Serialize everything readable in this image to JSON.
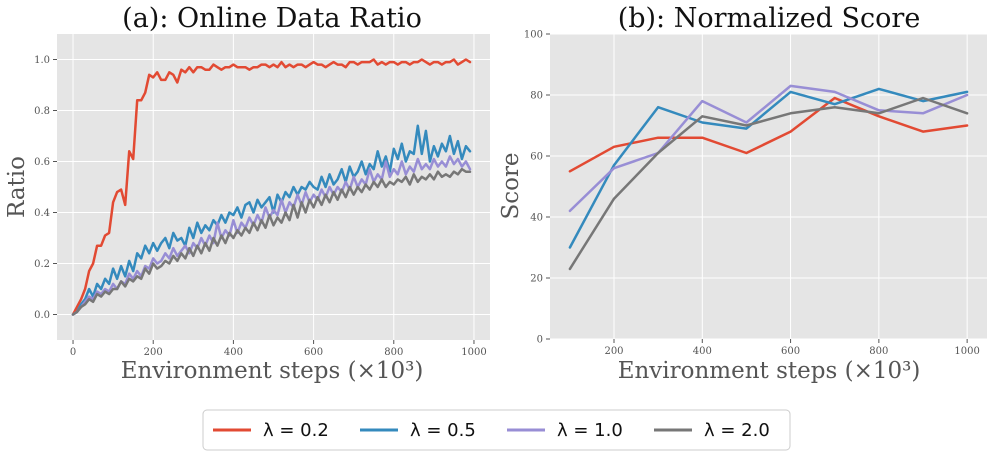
{
  "chart_data": [
    {
      "type": "line",
      "title": "(a): Online Data Ratio",
      "xlabel": "Environment steps (×10³)",
      "ylabel": "Ratio",
      "xlim": [
        -40,
        1040
      ],
      "ylim": [
        -0.1,
        1.1
      ],
      "xticks": [
        0,
        200,
        400,
        600,
        800,
        1000
      ],
      "yticks": [
        0.0,
        0.2,
        0.4,
        0.6,
        0.8,
        1.0
      ],
      "series": [
        {
          "name": "λ = 0.2",
          "color": "#E24A33",
          "x": [
            0,
            10,
            20,
            30,
            40,
            50,
            60,
            70,
            80,
            90,
            100,
            110,
            120,
            130,
            140,
            150,
            160,
            170,
            180,
            190,
            200,
            210,
            220,
            230,
            240,
            250,
            260,
            270,
            280,
            290,
            300,
            310,
            320,
            330,
            340,
            350,
            360,
            370,
            380,
            390,
            400,
            410,
            420,
            430,
            440,
            450,
            460,
            470,
            480,
            490,
            500,
            510,
            520,
            530,
            540,
            550,
            560,
            570,
            580,
            590,
            600,
            610,
            620,
            630,
            640,
            650,
            660,
            670,
            680,
            690,
            700,
            710,
            720,
            730,
            740,
            750,
            760,
            770,
            780,
            790,
            800,
            810,
            820,
            830,
            840,
            850,
            860,
            870,
            880,
            890,
            900,
            910,
            920,
            930,
            940,
            950,
            960,
            970,
            980,
            990
          ],
          "y": [
            0,
            0.03,
            0.06,
            0.1,
            0.17,
            0.2,
            0.27,
            0.27,
            0.31,
            0.32,
            0.44,
            0.48,
            0.49,
            0.43,
            0.64,
            0.61,
            0.84,
            0.84,
            0.87,
            0.94,
            0.93,
            0.95,
            0.92,
            0.92,
            0.95,
            0.94,
            0.91,
            0.96,
            0.95,
            0.97,
            0.95,
            0.97,
            0.97,
            0.96,
            0.96,
            0.98,
            0.97,
            0.96,
            0.97,
            0.97,
            0.98,
            0.97,
            0.97,
            0.97,
            0.96,
            0.97,
            0.97,
            0.98,
            0.98,
            0.97,
            0.98,
            0.97,
            0.99,
            0.97,
            0.98,
            0.97,
            0.98,
            0.98,
            0.97,
            0.98,
            0.99,
            0.98,
            0.98,
            0.97,
            0.98,
            0.99,
            0.98,
            0.98,
            0.97,
            0.99,
            0.99,
            0.98,
            0.99,
            0.99,
            0.99,
            1.0,
            0.98,
            0.99,
            0.98,
            0.99,
            0.99,
            0.98,
            0.99,
            0.99,
            0.98,
            0.99,
            0.99,
            1.0,
            0.99,
            0.98,
            0.99,
            0.99,
            0.98,
            0.99,
            0.99,
            1.0,
            0.98,
            0.99,
            1.0,
            0.99
          ]
        },
        {
          "name": "λ = 0.5",
          "color": "#348ABD",
          "x": [
            0,
            10,
            20,
            30,
            40,
            50,
            60,
            70,
            80,
            90,
            100,
            110,
            120,
            130,
            140,
            150,
            160,
            170,
            180,
            190,
            200,
            210,
            220,
            230,
            240,
            250,
            260,
            270,
            280,
            290,
            300,
            310,
            320,
            330,
            340,
            350,
            360,
            370,
            380,
            390,
            400,
            410,
            420,
            430,
            440,
            450,
            460,
            470,
            480,
            490,
            500,
            510,
            520,
            530,
            540,
            550,
            560,
            570,
            580,
            590,
            600,
            610,
            620,
            630,
            640,
            650,
            660,
            670,
            680,
            690,
            700,
            710,
            720,
            730,
            740,
            750,
            760,
            770,
            780,
            790,
            800,
            810,
            820,
            830,
            840,
            850,
            860,
            870,
            880,
            890,
            900,
            910,
            920,
            930,
            940,
            950,
            960,
            970,
            980,
            990
          ],
          "y": [
            0,
            0.01,
            0.04,
            0.06,
            0.1,
            0.07,
            0.12,
            0.1,
            0.14,
            0.12,
            0.18,
            0.14,
            0.19,
            0.15,
            0.21,
            0.17,
            0.24,
            0.22,
            0.27,
            0.24,
            0.28,
            0.25,
            0.28,
            0.3,
            0.26,
            0.32,
            0.29,
            0.3,
            0.27,
            0.34,
            0.3,
            0.36,
            0.32,
            0.35,
            0.33,
            0.37,
            0.35,
            0.39,
            0.36,
            0.4,
            0.39,
            0.42,
            0.38,
            0.43,
            0.44,
            0.4,
            0.45,
            0.42,
            0.44,
            0.46,
            0.4,
            0.47,
            0.44,
            0.48,
            0.46,
            0.5,
            0.47,
            0.5,
            0.49,
            0.52,
            0.5,
            0.49,
            0.54,
            0.5,
            0.55,
            0.51,
            0.53,
            0.57,
            0.52,
            0.58,
            0.54,
            0.56,
            0.6,
            0.55,
            0.59,
            0.57,
            0.64,
            0.58,
            0.62,
            0.56,
            0.65,
            0.61,
            0.67,
            0.6,
            0.64,
            0.63,
            0.74,
            0.63,
            0.72,
            0.6,
            0.66,
            0.62,
            0.67,
            0.64,
            0.7,
            0.63,
            0.68,
            0.61,
            0.66,
            0.64
          ]
        },
        {
          "name": "λ = 1.0",
          "color": "#988ED5",
          "x": [
            0,
            10,
            20,
            30,
            40,
            50,
            60,
            70,
            80,
            90,
            100,
            110,
            120,
            130,
            140,
            150,
            160,
            170,
            180,
            190,
            200,
            210,
            220,
            230,
            240,
            250,
            260,
            270,
            280,
            290,
            300,
            310,
            320,
            330,
            340,
            350,
            360,
            370,
            380,
            390,
            400,
            410,
            420,
            430,
            440,
            450,
            460,
            470,
            480,
            490,
            500,
            510,
            520,
            530,
            540,
            550,
            560,
            570,
            580,
            590,
            600,
            610,
            620,
            630,
            640,
            650,
            660,
            670,
            680,
            690,
            700,
            710,
            720,
            730,
            740,
            750,
            760,
            770,
            780,
            790,
            800,
            810,
            820,
            830,
            840,
            850,
            860,
            870,
            880,
            890,
            900,
            910,
            920,
            930,
            940,
            950,
            960,
            970,
            980,
            990
          ],
          "y": [
            0,
            0.01,
            0.03,
            0.05,
            0.07,
            0.06,
            0.09,
            0.08,
            0.1,
            0.09,
            0.12,
            0.1,
            0.13,
            0.12,
            0.16,
            0.14,
            0.17,
            0.15,
            0.19,
            0.18,
            0.22,
            0.2,
            0.21,
            0.24,
            0.22,
            0.26,
            0.23,
            0.25,
            0.27,
            0.24,
            0.28,
            0.26,
            0.3,
            0.27,
            0.31,
            0.28,
            0.36,
            0.3,
            0.33,
            0.31,
            0.37,
            0.32,
            0.36,
            0.34,
            0.38,
            0.35,
            0.39,
            0.36,
            0.42,
            0.38,
            0.41,
            0.39,
            0.45,
            0.4,
            0.44,
            0.42,
            0.47,
            0.43,
            0.48,
            0.44,
            0.47,
            0.45,
            0.49,
            0.46,
            0.5,
            0.47,
            0.5,
            0.48,
            0.52,
            0.49,
            0.54,
            0.5,
            0.53,
            0.51,
            0.57,
            0.52,
            0.55,
            0.53,
            0.6,
            0.54,
            0.57,
            0.55,
            0.6,
            0.55,
            0.58,
            0.56,
            0.61,
            0.57,
            0.59,
            0.57,
            0.61,
            0.58,
            0.6,
            0.58,
            0.62,
            0.59,
            0.61,
            0.58,
            0.6,
            0.57
          ]
        },
        {
          "name": "λ = 2.0",
          "color": "#777777",
          "x": [
            0,
            10,
            20,
            30,
            40,
            50,
            60,
            70,
            80,
            90,
            100,
            110,
            120,
            130,
            140,
            150,
            160,
            170,
            180,
            190,
            200,
            210,
            220,
            230,
            240,
            250,
            260,
            270,
            280,
            290,
            300,
            310,
            320,
            330,
            340,
            350,
            360,
            370,
            380,
            390,
            400,
            410,
            420,
            430,
            440,
            450,
            460,
            470,
            480,
            490,
            500,
            510,
            520,
            530,
            540,
            550,
            560,
            570,
            580,
            590,
            600,
            610,
            620,
            630,
            640,
            650,
            660,
            670,
            680,
            690,
            700,
            710,
            720,
            730,
            740,
            750,
            760,
            770,
            780,
            790,
            800,
            810,
            820,
            830,
            840,
            850,
            860,
            870,
            880,
            890,
            900,
            910,
            920,
            930,
            940,
            950,
            960,
            970,
            980,
            990
          ],
          "y": [
            0,
            0.01,
            0.03,
            0.04,
            0.06,
            0.05,
            0.08,
            0.07,
            0.09,
            0.08,
            0.1,
            0.1,
            0.13,
            0.11,
            0.14,
            0.13,
            0.15,
            0.14,
            0.18,
            0.16,
            0.2,
            0.18,
            0.19,
            0.21,
            0.2,
            0.23,
            0.21,
            0.24,
            0.22,
            0.26,
            0.23,
            0.27,
            0.24,
            0.28,
            0.25,
            0.3,
            0.27,
            0.31,
            0.28,
            0.32,
            0.3,
            0.33,
            0.31,
            0.34,
            0.32,
            0.36,
            0.33,
            0.37,
            0.34,
            0.39,
            0.35,
            0.38,
            0.36,
            0.4,
            0.37,
            0.43,
            0.38,
            0.44,
            0.4,
            0.45,
            0.42,
            0.46,
            0.43,
            0.47,
            0.44,
            0.48,
            0.45,
            0.49,
            0.46,
            0.5,
            0.47,
            0.5,
            0.48,
            0.51,
            0.49,
            0.52,
            0.5,
            0.53,
            0.5,
            0.52,
            0.51,
            0.53,
            0.52,
            0.54,
            0.51,
            0.55,
            0.52,
            0.54,
            0.53,
            0.55,
            0.53,
            0.56,
            0.54,
            0.55,
            0.54,
            0.56,
            0.55,
            0.57,
            0.56,
            0.56
          ]
        }
      ]
    },
    {
      "type": "line",
      "title": "(b): Normalized Score",
      "xlabel": "Environment steps (×10³)",
      "ylabel": "Score",
      "xlim": [
        55,
        1045
      ],
      "ylim": [
        0,
        100
      ],
      "xticks": [
        200,
        400,
        600,
        800,
        1000
      ],
      "yticks": [
        0,
        20,
        40,
        60,
        80,
        100
      ],
      "series": [
        {
          "name": "λ = 0.2",
          "color": "#E24A33",
          "x": [
            100,
            200,
            300,
            400,
            500,
            600,
            700,
            800,
            900,
            1000
          ],
          "y": [
            55,
            63,
            66,
            66,
            61,
            68,
            79,
            73,
            68,
            70
          ]
        },
        {
          "name": "λ = 0.5",
          "color": "#348ABD",
          "x": [
            100,
            200,
            300,
            400,
            500,
            600,
            700,
            800,
            900,
            1000
          ],
          "y": [
            30,
            57,
            76,
            71,
            69,
            81,
            77,
            82,
            78,
            81
          ]
        },
        {
          "name": "λ = 1.0",
          "color": "#988ED5",
          "x": [
            100,
            200,
            300,
            400,
            500,
            600,
            700,
            800,
            900,
            1000
          ],
          "y": [
            42,
            56,
            61,
            78,
            71,
            83,
            81,
            75,
            74,
            80
          ]
        },
        {
          "name": "λ = 2.0",
          "color": "#777777",
          "x": [
            100,
            200,
            300,
            400,
            500,
            600,
            700,
            800,
            900,
            1000
          ],
          "y": [
            23,
            46,
            61,
            73,
            70,
            74,
            76,
            74,
            79,
            74
          ]
        }
      ]
    }
  ],
  "legend": [
    {
      "label": "λ = 0.2",
      "color": "#E24A33"
    },
    {
      "label": "λ = 0.5",
      "color": "#348ABD"
    },
    {
      "label": "λ = 1.0",
      "color": "#988ED5"
    },
    {
      "label": "λ = 2.0",
      "color": "#777777"
    }
  ]
}
